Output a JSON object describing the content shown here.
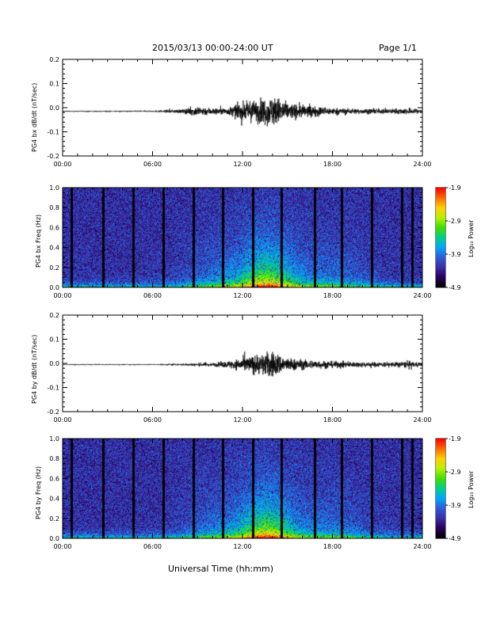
{
  "header": {
    "title": "2015/03/13  00:00-24:00 UT",
    "page": "Page 1/1"
  },
  "footer": {
    "xlabel": "Universal Time (hh:mm)"
  },
  "colors": {
    "colorbar": [
      "#000000",
      "#2a0060",
      "#3b2fa8",
      "#2f5cd6",
      "#00a6ff",
      "#00d08a",
      "#3ee000",
      "#b8f000",
      "#ffd000",
      "#ff6a00",
      "#ff0000"
    ]
  },
  "chart_data": [
    {
      "type": "line",
      "ylabel": "PG4 bx dB/dt (nT/sec)",
      "xlim": [
        "00:00",
        "24:00"
      ],
      "ylim": [
        -0.2,
        0.2
      ],
      "xticks": [
        "00:00",
        "06:00",
        "12:00",
        "18:00",
        "24:00"
      ],
      "yticks": [
        "0.2",
        "0.1",
        "0.0",
        "-0.1",
        "-0.2"
      ],
      "x_hours": [
        0,
        6,
        8,
        9,
        10,
        11,
        11.5,
        12,
        12.5,
        13,
        13.5,
        14,
        14.5,
        15,
        16,
        17,
        18,
        20,
        22,
        23,
        24
      ],
      "y_envelope": [
        0.003,
        0.004,
        0.012,
        0.03,
        0.02,
        0.02,
        0.04,
        0.05,
        0.06,
        0.07,
        0.08,
        0.09,
        0.08,
        0.05,
        0.04,
        0.03,
        0.02,
        0.015,
        0.015,
        0.02,
        0.01
      ],
      "baseline": -0.015
    },
    {
      "type": "heatmap",
      "ylabel": "PG4 bx Freq (Hz)",
      "xlim": [
        "00:00",
        "24:00"
      ],
      "ylim": [
        0.0,
        1.0
      ],
      "xticks": [
        "00:00",
        "06:00",
        "12:00",
        "18:00",
        "24:00"
      ],
      "yticks": [
        "1.0",
        "0.8",
        "0.6",
        "0.4",
        "0.2",
        "0.0"
      ],
      "colorbar_label": "Log₁₀ Power",
      "colorbar_ticks": [
        "-1.9",
        "-2.9",
        "-3.9",
        "-4.9"
      ],
      "zlim": [
        -4.9,
        -1.9
      ],
      "gaps_hours": [
        0.6,
        2.7,
        4.7,
        6.7,
        8.7,
        10.7,
        12.7,
        14.6,
        16.8,
        18.6,
        20.6,
        22.6,
        23.3
      ]
    },
    {
      "type": "line",
      "ylabel": "PG4 by dB/dt (nT/sec)",
      "xlim": [
        "00:00",
        "24:00"
      ],
      "ylim": [
        -0.2,
        0.2
      ],
      "xticks": [
        "00:00",
        "06:00",
        "12:00",
        "18:00",
        "24:00"
      ],
      "yticks": [
        "0.2",
        "0.1",
        "0.0",
        "-0.1",
        "-0.2"
      ],
      "x_hours": [
        0,
        6,
        8,
        9,
        10,
        11,
        11.5,
        12,
        12.5,
        13,
        13.5,
        14,
        14.5,
        15,
        16,
        17,
        18,
        20,
        22,
        23,
        24
      ],
      "y_envelope": [
        0.003,
        0.003,
        0.006,
        0.01,
        0.01,
        0.02,
        0.03,
        0.04,
        0.05,
        0.06,
        0.07,
        0.08,
        0.06,
        0.04,
        0.03,
        0.025,
        0.02,
        0.015,
        0.015,
        0.02,
        0.01
      ],
      "baseline": -0.005
    },
    {
      "type": "heatmap",
      "ylabel": "PG4 by Freq (Hz)",
      "xlim": [
        "00:00",
        "24:00"
      ],
      "ylim": [
        0.0,
        1.0
      ],
      "xticks": [
        "00:00",
        "06:00",
        "12:00",
        "18:00",
        "24:00"
      ],
      "yticks": [
        "1.0",
        "0.8",
        "0.6",
        "0.4",
        "0.2",
        "0.0"
      ],
      "colorbar_label": "Log₁₀ Power",
      "colorbar_ticks": [
        "-1.9",
        "-2.9",
        "-3.9",
        "-4.9"
      ],
      "zlim": [
        -4.9,
        -1.9
      ],
      "gaps_hours": [
        0.6,
        2.7,
        4.7,
        6.7,
        8.7,
        10.7,
        12.7,
        14.6,
        16.8,
        18.6,
        20.6,
        22.6,
        23.3
      ]
    }
  ]
}
